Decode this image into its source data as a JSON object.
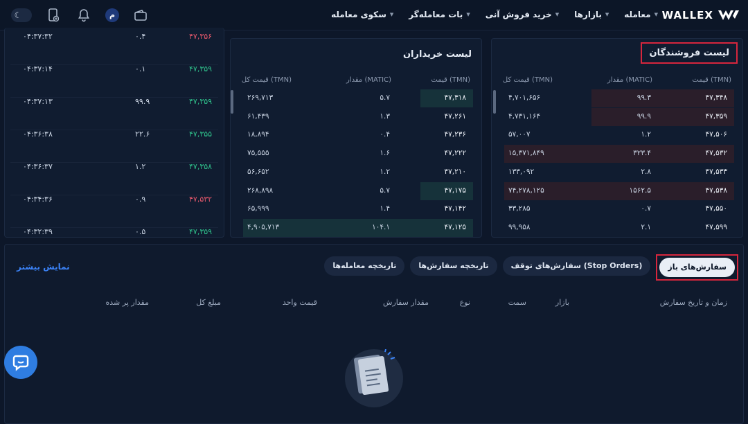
{
  "header": {
    "logo_text": "WALLEX",
    "nav": [
      {
        "label": "معامله",
        "has_caret": true
      },
      {
        "label": "بازارها",
        "has_caret": true
      },
      {
        "label": "خرید فروش آنی",
        "has_caret": true
      },
      {
        "label": "بات معامله‌گر",
        "has_caret": true
      },
      {
        "label": "سکوی معامله",
        "has_caret": true
      }
    ],
    "avatar_letter": "م"
  },
  "sellers": {
    "title": "لیست فروشندگان",
    "headers": {
      "price": "قیمت (TMN)",
      "amount": "مقدار (MATIC)",
      "total": "قیمت کل (TMN)"
    },
    "rows": [
      {
        "price": "۴۷,۳۴۸",
        "amount": "۹۹.۳",
        "total": "۴,۷۰۱,۶۵۶",
        "depth": 0.62
      },
      {
        "price": "۴۷,۳۵۹",
        "amount": "۹۹.۹",
        "total": "۴,۷۳۱,۱۶۴",
        "depth": 0.62
      },
      {
        "price": "۴۷,۵۰۶",
        "amount": "۱.۲",
        "total": "۵۷,۰۰۷",
        "depth": 0.0
      },
      {
        "price": "۴۷,۵۳۲",
        "amount": "۳۲۳.۴",
        "total": "۱۵,۳۷۱,۸۴۹",
        "depth": 1.0
      },
      {
        "price": "۴۷,۵۳۳",
        "amount": "۲.۸",
        "total": "۱۳۳,۰۹۲",
        "depth": 0.0
      },
      {
        "price": "۴۷,۵۳۸",
        "amount": "۱۵۶۲.۵",
        "total": "۷۴,۲۷۸,۱۲۵",
        "depth": 1.0
      },
      {
        "price": "۴۷,۵۵۰",
        "amount": "۰.۷",
        "total": "۳۳,۲۸۵",
        "depth": 0.0
      },
      {
        "price": "۴۷,۵۹۹",
        "amount": "۲.۱",
        "total": "۹۹,۹۵۸",
        "depth": 0.0
      }
    ]
  },
  "buyers": {
    "title": "لیست خریداران",
    "headers": {
      "price": "قیمت (TMN)",
      "amount": "مقدار (MATIC)",
      "total": "قیمت کل (TMN)"
    },
    "rows": [
      {
        "price": "۴۷,۳۱۸",
        "amount": "۵.۷",
        "total": "۲۶۹,۷۱۳",
        "depth": 0.22
      },
      {
        "price": "۴۷,۲۶۱",
        "amount": "۱.۳",
        "total": "۶۱,۴۳۹",
        "depth": 0.0
      },
      {
        "price": "۴۷,۲۳۶",
        "amount": "۰.۴",
        "total": "۱۸,۸۹۴",
        "depth": 0.0
      },
      {
        "price": "۴۷,۲۲۲",
        "amount": "۱.۶",
        "total": "۷۵,۵۵۵",
        "depth": 0.0
      },
      {
        "price": "۴۷,۲۱۰",
        "amount": "۱.۲",
        "total": "۵۶,۶۵۲",
        "depth": 0.0
      },
      {
        "price": "۴۷,۱۷۵",
        "amount": "۵.۷",
        "total": "۲۶۸,۸۹۸",
        "depth": 0.22
      },
      {
        "price": "۴۷,۱۴۲",
        "amount": "۱.۴",
        "total": "۶۵,۹۹۹",
        "depth": 0.0
      },
      {
        "price": "۴۷,۱۲۵",
        "amount": "۱۰۴.۱",
        "total": "۴,۹۰۵,۷۱۳",
        "depth": 1.0
      }
    ]
  },
  "trades": [
    {
      "price": "۴۷,۳۵۶",
      "side": "sell",
      "amount": "۰.۴",
      "time": "۰۴:۳۷:۳۲"
    },
    {
      "price": "۴۷,۳۵۹",
      "side": "buy",
      "amount": "۰.۱",
      "time": "۰۴:۳۷:۱۴"
    },
    {
      "price": "۴۷,۳۵۹",
      "side": "buy",
      "amount": "۹۹.۹",
      "time": "۰۴:۳۷:۱۳"
    },
    {
      "price": "۴۷,۳۵۵",
      "side": "buy",
      "amount": "۲۲.۶",
      "time": "۰۴:۳۶:۳۸"
    },
    {
      "price": "۴۷,۳۵۸",
      "side": "buy",
      "amount": "۱.۲",
      "time": "۰۴:۳۶:۳۷"
    },
    {
      "price": "۴۷,۵۳۲",
      "side": "sell",
      "amount": "۰.۹",
      "time": "۰۴:۳۴:۳۶"
    },
    {
      "price": "۴۷,۳۵۹",
      "side": "buy",
      "amount": "۰.۵",
      "time": "۰۴:۳۲:۳۹"
    }
  ],
  "orders": {
    "tabs": [
      "سفارش‌های باز",
      "سفارش‌های توقف (Stop Orders)",
      "تاریخچه سفارش‌ها",
      "تاریخچه معامله‌ها"
    ],
    "active_tab": 0,
    "show_more": "نمایش بیشتر",
    "columns": [
      "زمان و تاریخ سفارش",
      "بازار",
      "سمت",
      "نوع",
      "مقدار سفارش",
      "قیمت واحد",
      "مبلغ کل",
      "مقدار پر شده"
    ]
  },
  "colors": {
    "sell": "#e0566a",
    "buy": "#2fbf8a",
    "accent": "#3b82f6",
    "highlight": "#d7263d"
  }
}
